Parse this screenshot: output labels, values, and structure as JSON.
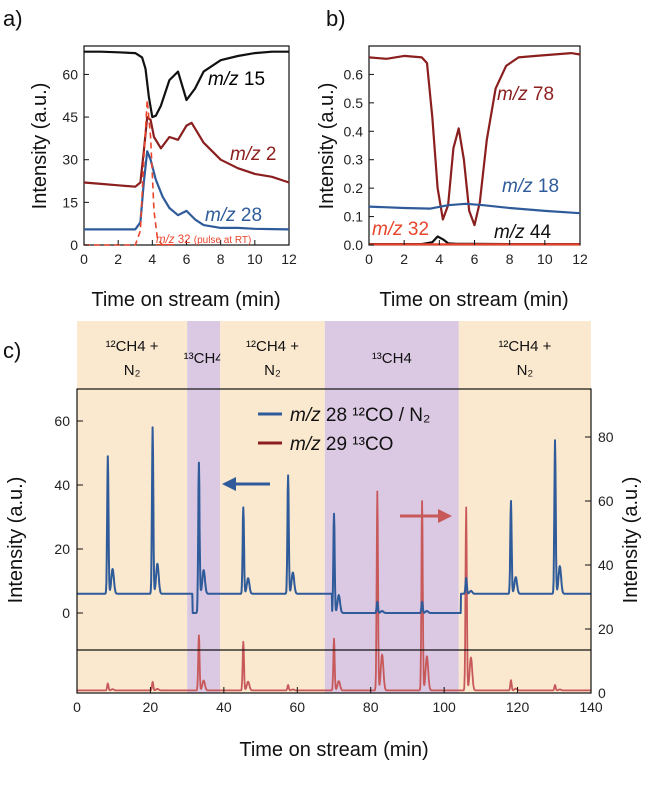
{
  "panel_labels": {
    "a": "a)",
    "b": "b)",
    "c": "c)"
  },
  "colors": {
    "black": "#111111",
    "darkred": "#8b1f1f",
    "blue": "#2f5b9a",
    "red": "#e8452c",
    "lightred": "#c8595a",
    "orange_band": "#fbe9cf",
    "purple_band": "#dbc9e3"
  },
  "chart_data": [
    {
      "type": "line",
      "panel": "a",
      "xlabel": "Time on stream (min)",
      "ylabel": "Intensity (a.u.)",
      "xlim": [
        0,
        12
      ],
      "ylim": [
        0,
        70
      ],
      "xticks": [
        "0",
        "2",
        "4",
        "6",
        "8",
        "10",
        "12"
      ],
      "yticks": [
        "0",
        "15",
        "30",
        "45",
        "60"
      ],
      "series": [
        {
          "name": "m/z 15",
          "label_prefix": "m/z",
          "label_value": "15",
          "color": "#111111",
          "dash": "",
          "x": [
            0,
            1,
            2,
            3,
            3.4,
            3.6,
            3.8,
            4.0,
            4.2,
            4.5,
            5.0,
            5.5,
            6.0,
            6.5,
            7.0,
            8.0,
            9.0,
            10.0,
            11.0,
            12.0
          ],
          "y": [
            68,
            68,
            67.8,
            67.5,
            66,
            62,
            52,
            45,
            45.5,
            49,
            58,
            61,
            51,
            55,
            61,
            65,
            66.5,
            67.5,
            68,
            68
          ]
        },
        {
          "name": "m/z 2",
          "label_prefix": "m/z",
          "label_value": "2",
          "color": "#8b1f1f",
          "dash": "",
          "x": [
            0,
            1,
            2,
            3,
            3.3,
            3.5,
            3.7,
            3.9,
            4.1,
            4.5,
            5.0,
            5.5,
            6.0,
            6.3,
            7.0,
            8.0,
            9.0,
            10.0,
            11.0,
            12.0
          ],
          "y": [
            22,
            21.5,
            21,
            20.5,
            22,
            33,
            45,
            44,
            38,
            34,
            38,
            37,
            42,
            43,
            36,
            30,
            27,
            25,
            24,
            22
          ]
        },
        {
          "name": "m/z 28",
          "label_prefix": "m/z",
          "label_value": "28",
          "color": "#2f5b9a",
          "dash": "",
          "x": [
            0,
            1,
            2,
            3,
            3.3,
            3.5,
            3.7,
            3.9,
            4.2,
            4.6,
            5.0,
            5.5,
            6.0,
            6.5,
            7.0,
            8.0,
            9.0,
            10.0,
            11.0,
            12.0
          ],
          "y": [
            5.5,
            5.5,
            5.5,
            5.5,
            8,
            22,
            33,
            30,
            23,
            17,
            13,
            10.5,
            12,
            9,
            7,
            6,
            6,
            5.7,
            5.6,
            5.5
          ]
        },
        {
          "name": "m/z 32",
          "label_prefix": "m/z",
          "label_value": "32",
          "label_suffix": "(pulse at RT)",
          "color": "#e8452c",
          "dash": "6,4",
          "x": [
            0,
            1,
            2,
            3,
            3.3,
            3.5,
            3.7,
            3.9,
            4.1,
            4.3,
            4.6,
            5.0
          ],
          "y": [
            0,
            0,
            0,
            0,
            5,
            30,
            51,
            38,
            12,
            2,
            0,
            0
          ]
        }
      ]
    },
    {
      "type": "line",
      "panel": "b",
      "xlabel": "Time on stream (min)",
      "ylabel": "Intensity (a.u.)",
      "xlim": [
        0,
        12
      ],
      "ylim": [
        0,
        0.7
      ],
      "xticks": [
        "0",
        "2",
        "4",
        "6",
        "8",
        "10",
        "12"
      ],
      "yticks": [
        "0.0",
        "0.1",
        "0.2",
        "0.3",
        "0.4",
        "0.5",
        "0.6"
      ],
      "series": [
        {
          "name": "m/z 78",
          "label_prefix": "m/z",
          "label_value": "78",
          "color": "#8b1f1f",
          "x": [
            0,
            1,
            2,
            3,
            3.3,
            3.6,
            3.9,
            4.2,
            4.5,
            4.8,
            5.1,
            5.4,
            5.7,
            6.0,
            6.3,
            6.7,
            7.2,
            7.8,
            8.5,
            9.5,
            10.5,
            11.5,
            12.0
          ],
          "y": [
            0.66,
            0.655,
            0.665,
            0.66,
            0.64,
            0.45,
            0.2,
            0.09,
            0.14,
            0.34,
            0.41,
            0.3,
            0.12,
            0.07,
            0.15,
            0.37,
            0.55,
            0.63,
            0.66,
            0.665,
            0.67,
            0.675,
            0.67
          ]
        },
        {
          "name": "m/z 18",
          "label_prefix": "m/z",
          "label_value": "18",
          "color": "#2f5b9a",
          "x": [
            0,
            2,
            3.5,
            4.5,
            5.5,
            6.5,
            8,
            10,
            12
          ],
          "y": [
            0.135,
            0.13,
            0.128,
            0.14,
            0.145,
            0.14,
            0.13,
            0.12,
            0.112
          ]
        },
        {
          "name": "m/z 44",
          "label_prefix": "m/z",
          "label_value": "44",
          "color": "#111111",
          "x": [
            0,
            3,
            3.6,
            3.9,
            4.2,
            4.5,
            5.0,
            6.0,
            8,
            12
          ],
          "y": [
            0.003,
            0.003,
            0.01,
            0.03,
            0.02,
            0.006,
            0.004,
            0.004,
            0.003,
            0.003
          ]
        },
        {
          "name": "m/z 32",
          "label_prefix": "m/z",
          "label_value": "32",
          "color": "#e8452c",
          "x": [
            0,
            12
          ],
          "y": [
            0.002,
            0.002
          ]
        }
      ]
    },
    {
      "type": "line",
      "panel": "c",
      "xlabel": "Time on stream (min)",
      "ylabel": "Intensity (a.u.)",
      "ylabel_right": "Intensity (a.u.)",
      "xlim": [
        0,
        140
      ],
      "ylim_left": [
        -25,
        70
      ],
      "ylim_right": [
        0,
        95
      ],
      "xticks": [
        "0",
        "20",
        "40",
        "60",
        "80",
        "100",
        "120",
        "140"
      ],
      "yticks_left": [
        "0",
        "20",
        "40",
        "60"
      ],
      "yticks_right": [
        "0",
        "20",
        "40",
        "60",
        "80"
      ],
      "bands": [
        {
          "x0": 0,
          "x1": 30,
          "kind": "orange",
          "lines": [
            "¹²CH4 +",
            "N₂"
          ]
        },
        {
          "x0": 30,
          "x1": 39,
          "kind": "purple",
          "lines": [
            "¹³CH4"
          ]
        },
        {
          "x0": 39,
          "x1": 67.5,
          "kind": "orange",
          "lines": [
            "¹²CH4 +",
            "N₂"
          ]
        },
        {
          "x0": 67.5,
          "x1": 104,
          "kind": "purple",
          "lines": [
            "¹³CH4"
          ]
        },
        {
          "x0": 104,
          "x1": 140,
          "kind": "orange",
          "lines": [
            "¹²CH4 +",
            "N₂"
          ]
        }
      ],
      "legend": [
        {
          "prefix": "m/z",
          "text": "28 ¹²CO / N₂",
          "color": "#2f5b9a"
        },
        {
          "prefix": "m/z",
          "text": "29 ¹³CO",
          "color": "#8b1f1f"
        }
      ],
      "baseline_left": 0,
      "series": [
        {
          "name": "m/z 28 12CO / N2",
          "axis": "left",
          "color": "#2f5b9a",
          "baseline": 6,
          "dip_ranges": [
            [
              31.5,
              33.5
            ],
            [
              69.5,
              104.5
            ]
          ],
          "dip_level": 0,
          "peaks": [
            {
              "x": 8.4,
              "y": 49
            },
            {
              "x": 20.6,
              "y": 58
            },
            {
              "x": 33.2,
              "y": 47
            },
            {
              "x": 45.3,
              "y": 33
            },
            {
              "x": 57.5,
              "y": 43
            },
            {
              "x": 70.0,
              "y": 31
            },
            {
              "x": 81.8,
              "y": 3.5
            },
            {
              "x": 94.0,
              "y": 3.5
            },
            {
              "x": 106.0,
              "y": 11
            },
            {
              "x": 118.2,
              "y": 35
            },
            {
              "x": 130.2,
              "y": 54
            }
          ]
        },
        {
          "name": "m/z 29 13CO",
          "axis": "right",
          "color": "#c8595a",
          "baseline": 0.8,
          "peaks": [
            {
              "x": 8.4,
              "y": 3
            },
            {
              "x": 20.6,
              "y": 3.5
            },
            {
              "x": 33.2,
              "y": 18
            },
            {
              "x": 45.3,
              "y": 16
            },
            {
              "x": 57.5,
              "y": 2.5
            },
            {
              "x": 70.0,
              "y": 17
            },
            {
              "x": 81.8,
              "y": 63
            },
            {
              "x": 94.0,
              "y": 60
            },
            {
              "x": 106.0,
              "y": 58
            },
            {
              "x": 118.2,
              "y": 4
            },
            {
              "x": 130.2,
              "y": 2.5
            }
          ]
        }
      ]
    }
  ]
}
